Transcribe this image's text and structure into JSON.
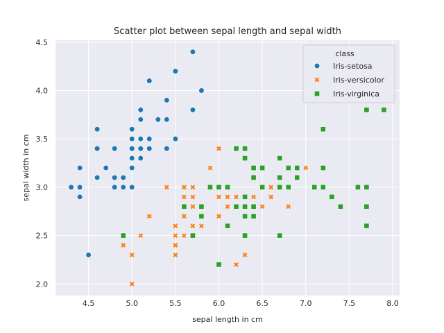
{
  "chart_data": {
    "type": "scatter",
    "title": "Scatter plot between sepal length and sepal width",
    "xlabel": "sepal length in cm",
    "ylabel": "sepal width in cm",
    "xlim": [
      4.12,
      8.08
    ],
    "ylim": [
      1.88,
      4.52
    ],
    "xticks": [
      4.5,
      5.0,
      5.5,
      6.0,
      6.5,
      7.0,
      7.5,
      8.0
    ],
    "xtick_labels": [
      "4.5",
      "5.0",
      "5.5",
      "6.0",
      "6.5",
      "7.0",
      "7.5",
      "8.0"
    ],
    "yticks": [
      2.0,
      2.5,
      3.0,
      3.5,
      4.0,
      4.5
    ],
    "ytick_labels": [
      "2.0",
      "2.5",
      "3.0",
      "3.5",
      "4.0",
      "4.5"
    ],
    "grid": true,
    "background": "#eaeaf2",
    "legend": {
      "title": "class",
      "position": "top-right"
    },
    "series": [
      {
        "name": "Iris-setosa",
        "marker": "circle",
        "color": "#1f77b4",
        "points": [
          [
            5.1,
            3.5
          ],
          [
            4.9,
            3.0
          ],
          [
            4.7,
            3.2
          ],
          [
            4.6,
            3.1
          ],
          [
            5.0,
            3.6
          ],
          [
            5.4,
            3.9
          ],
          [
            4.6,
            3.4
          ],
          [
            5.0,
            3.4
          ],
          [
            4.4,
            2.9
          ],
          [
            4.9,
            3.1
          ],
          [
            5.4,
            3.7
          ],
          [
            4.8,
            3.4
          ],
          [
            4.8,
            3.0
          ],
          [
            4.3,
            3.0
          ],
          [
            5.8,
            4.0
          ],
          [
            5.7,
            4.4
          ],
          [
            5.7,
            3.8
          ],
          [
            5.1,
            3.8
          ],
          [
            5.4,
            3.4
          ],
          [
            4.6,
            3.6
          ],
          [
            5.1,
            3.3
          ],
          [
            5.0,
            3.0
          ],
          [
            5.2,
            3.5
          ],
          [
            5.2,
            3.4
          ],
          [
            4.7,
            3.2
          ],
          [
            5.5,
            4.2
          ],
          [
            4.9,
            3.1
          ],
          [
            5.0,
            3.2
          ],
          [
            5.5,
            3.5
          ],
          [
            4.4,
            3.0
          ],
          [
            5.1,
            3.4
          ],
          [
            4.5,
            2.3
          ],
          [
            4.4,
            3.2
          ],
          [
            5.0,
            3.5
          ],
          [
            5.3,
            3.7
          ],
          [
            5.2,
            4.1
          ],
          [
            5.0,
            3.3
          ],
          [
            4.8,
            3.1
          ],
          [
            5.1,
            3.7
          ]
        ]
      },
      {
        "name": "Iris-versicolor",
        "marker": "x",
        "color": "#ff7f0e",
        "points": [
          [
            7.0,
            3.2
          ],
          [
            6.4,
            3.2
          ],
          [
            6.9,
            3.1
          ],
          [
            5.5,
            2.3
          ],
          [
            6.5,
            2.8
          ],
          [
            5.7,
            2.8
          ],
          [
            6.3,
            3.3
          ],
          [
            4.9,
            2.4
          ],
          [
            6.6,
            2.9
          ],
          [
            5.2,
            2.7
          ],
          [
            5.0,
            2.0
          ],
          [
            5.9,
            3.0
          ],
          [
            6.0,
            2.2
          ],
          [
            6.1,
            2.9
          ],
          [
            5.6,
            2.9
          ],
          [
            6.7,
            3.1
          ],
          [
            5.6,
            3.0
          ],
          [
            5.8,
            2.7
          ],
          [
            6.2,
            2.2
          ],
          [
            5.6,
            2.5
          ],
          [
            5.9,
            3.2
          ],
          [
            6.1,
            2.8
          ],
          [
            6.3,
            2.5
          ],
          [
            6.4,
            2.9
          ],
          [
            6.6,
            3.0
          ],
          [
            6.8,
            2.8
          ],
          [
            6.7,
            3.0
          ],
          [
            6.0,
            2.9
          ],
          [
            5.7,
            2.6
          ],
          [
            5.5,
            2.4
          ],
          [
            5.5,
            2.4
          ],
          [
            5.8,
            2.7
          ],
          [
            6.0,
            2.7
          ],
          [
            5.4,
            3.0
          ],
          [
            6.0,
            3.4
          ],
          [
            6.7,
            3.1
          ],
          [
            6.3,
            2.3
          ],
          [
            5.6,
            3.0
          ],
          [
            5.5,
            2.5
          ],
          [
            5.5,
            2.6
          ],
          [
            6.1,
            3.0
          ],
          [
            5.8,
            2.6
          ],
          [
            5.0,
            2.3
          ],
          [
            5.6,
            2.7
          ],
          [
            5.7,
            3.0
          ],
          [
            5.7,
            2.9
          ],
          [
            6.2,
            2.9
          ],
          [
            5.1,
            2.5
          ],
          [
            5.7,
            2.8
          ]
        ]
      },
      {
        "name": "Iris-virginica",
        "marker": "square",
        "color": "#2ca02c",
        "points": [
          [
            6.3,
            3.3
          ],
          [
            5.8,
            2.7
          ],
          [
            7.1,
            3.0
          ],
          [
            6.3,
            2.9
          ],
          [
            6.5,
            3.0
          ],
          [
            7.6,
            3.0
          ],
          [
            4.9,
            2.5
          ],
          [
            7.3,
            2.9
          ],
          [
            6.7,
            2.5
          ],
          [
            7.2,
            3.6
          ],
          [
            6.5,
            3.2
          ],
          [
            6.4,
            2.7
          ],
          [
            6.8,
            3.0
          ],
          [
            5.7,
            2.5
          ],
          [
            5.8,
            2.8
          ],
          [
            6.4,
            3.2
          ],
          [
            6.5,
            3.0
          ],
          [
            7.7,
            3.8
          ],
          [
            7.7,
            2.6
          ],
          [
            6.0,
            2.2
          ],
          [
            6.9,
            3.2
          ],
          [
            5.6,
            2.8
          ],
          [
            7.7,
            2.8
          ],
          [
            6.3,
            2.7
          ],
          [
            6.7,
            3.3
          ],
          [
            7.2,
            3.2
          ],
          [
            6.2,
            2.8
          ],
          [
            6.1,
            3.0
          ],
          [
            6.4,
            2.8
          ],
          [
            7.2,
            3.0
          ],
          [
            7.4,
            2.8
          ],
          [
            7.9,
            3.8
          ],
          [
            6.4,
            2.8
          ],
          [
            6.3,
            2.8
          ],
          [
            6.1,
            2.6
          ],
          [
            7.7,
            3.0
          ],
          [
            6.3,
            3.4
          ],
          [
            6.4,
            3.1
          ],
          [
            6.0,
            3.0
          ],
          [
            6.9,
            3.1
          ],
          [
            6.7,
            3.1
          ],
          [
            6.9,
            3.1
          ],
          [
            6.8,
            3.2
          ],
          [
            6.7,
            3.3
          ],
          [
            6.7,
            3.0
          ],
          [
            6.3,
            2.5
          ],
          [
            6.5,
            3.0
          ],
          [
            6.2,
            3.4
          ],
          [
            5.9,
            3.0
          ]
        ]
      }
    ]
  }
}
